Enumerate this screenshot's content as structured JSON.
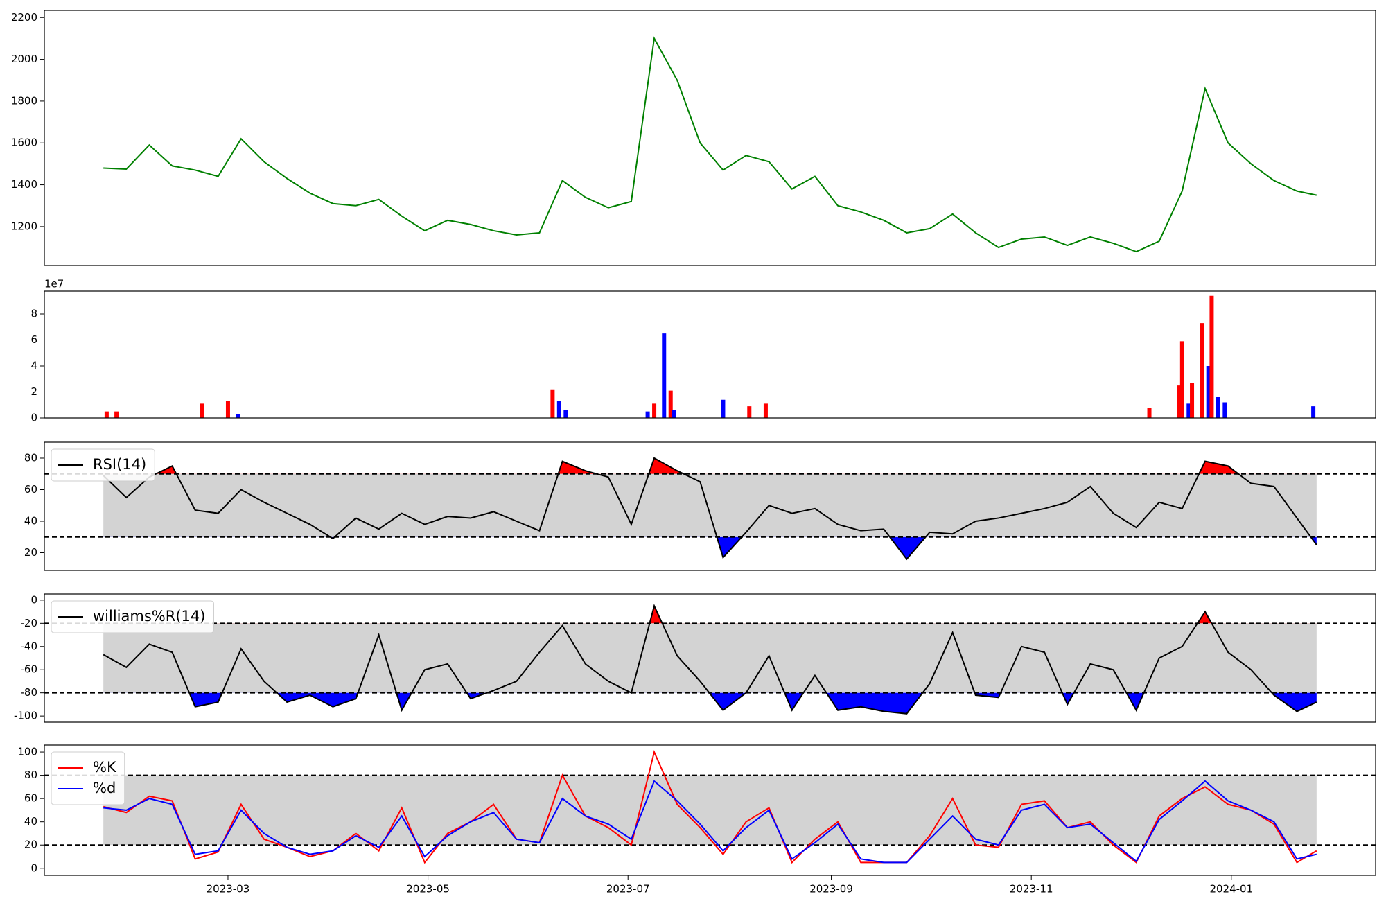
{
  "chart_data": [
    {
      "type": "line",
      "x": [
        19379,
        19386,
        19393,
        19400,
        19407,
        19414,
        19421,
        19428,
        19435,
        19442,
        19449,
        19456,
        19463,
        19470,
        19477,
        19484,
        19491,
        19498,
        19505,
        19512,
        19519,
        19526,
        19533,
        19540,
        19547,
        19554,
        19561,
        19568,
        19575,
        19582,
        19589,
        19596,
        19603,
        19610,
        19617,
        19624,
        19631,
        19638,
        19645,
        19652,
        19659,
        19666,
        19673,
        19680,
        19687,
        19694,
        19701,
        19708,
        19715,
        19722,
        19729,
        19736,
        19743,
        19749
      ],
      "series": [
        {
          "color": "green",
          "values": [
            1480,
            1475,
            1590,
            1490,
            1470,
            1440,
            1620,
            1510,
            1430,
            1360,
            1310,
            1300,
            1330,
            1250,
            1180,
            1230,
            1210,
            1180,
            1160,
            1170,
            1420,
            1340,
            1290,
            1320,
            2100,
            1900,
            1600,
            1470,
            1540,
            1510,
            1380,
            1440,
            1300,
            1270,
            1230,
            1170,
            1190,
            1260,
            1170,
            1100,
            1140,
            1150,
            1110,
            1150,
            1120,
            1080,
            1130,
            1370,
            1860,
            1600,
            1500,
            1420,
            1370,
            1350
          ]
        }
      ],
      "xlim": [
        19361,
        19767
      ],
      "ylim": [
        1014,
        2234
      ],
      "yticks": [
        1200,
        1400,
        1600,
        1800,
        2000,
        2200
      ]
    },
    {
      "type": "bar",
      "x": [
        19380,
        19383,
        19409,
        19417,
        19420,
        19516,
        19518,
        19520,
        19545,
        19547,
        19550,
        19552,
        19553,
        19568,
        19576,
        19581,
        19698,
        19707,
        19708,
        19710,
        19711,
        19714,
        19716,
        19717,
        19719,
        19721,
        19748
      ],
      "values": [
        5000000,
        5000000,
        11000000,
        13000000,
        3000000,
        22000000,
        13000000,
        6000000,
        5000000,
        11000000,
        65000000,
        21000000,
        6000000,
        14000000,
        9000000,
        11000000,
        8000000,
        25000000,
        59000000,
        11000000,
        27000000,
        73000000,
        40000000,
        94000000,
        16000000,
        12000000,
        9000000
      ],
      "colors": [
        "red",
        "red",
        "red",
        "red",
        "blue",
        "red",
        "blue",
        "blue",
        "blue",
        "red",
        "blue",
        "red",
        "blue",
        "blue",
        "red",
        "red",
        "red",
        "red",
        "red",
        "blue",
        "red",
        "red",
        "blue",
        "red",
        "blue",
        "blue",
        "blue"
      ],
      "xlim": [
        19361,
        19767
      ],
      "ylim": [
        0,
        97600000
      ],
      "yticks": [
        0,
        {
          "value": 20000000,
          "label": "2"
        },
        {
          "value": 40000000,
          "label": "4"
        },
        {
          "value": 60000000,
          "label": "6"
        },
        {
          "value": 80000000,
          "label": "8"
        }
      ],
      "offset_label": "1e7"
    },
    {
      "type": "line",
      "x": [
        19379,
        19386,
        19393,
        19400,
        19407,
        19414,
        19421,
        19428,
        19435,
        19442,
        19449,
        19456,
        19463,
        19470,
        19477,
        19484,
        19491,
        19498,
        19505,
        19512,
        19519,
        19526,
        19533,
        19540,
        19547,
        19554,
        19561,
        19568,
        19575,
        19582,
        19589,
        19596,
        19603,
        19610,
        19617,
        19624,
        19631,
        19638,
        19645,
        19652,
        19659,
        19666,
        19673,
        19680,
        19687,
        19694,
        19701,
        19708,
        19715,
        19722,
        19729,
        19736,
        19743,
        19749
      ],
      "series": [
        {
          "name": "RSI(14)",
          "color": "black",
          "values": [
            69,
            55,
            68,
            75,
            47,
            45,
            60,
            52,
            45,
            38,
            29,
            42,
            35,
            45,
            38,
            43,
            42,
            46,
            40,
            34,
            78,
            72,
            68,
            38,
            80,
            72,
            65,
            17,
            33,
            50,
            45,
            48,
            38,
            34,
            35,
            16,
            33,
            32,
            40,
            42,
            45,
            48,
            52,
            62,
            45,
            36,
            52,
            48,
            78,
            75,
            64,
            62,
            42,
            25
          ]
        }
      ],
      "thresholds": [
        70,
        30
      ],
      "band_color": "lightgray",
      "above_color": "red",
      "below_color": "blue",
      "legend": "upper left",
      "xlim": [
        19361,
        19767
      ],
      "ylim": [
        8.8,
        90.1
      ],
      "yticks": [
        20,
        40,
        60,
        80
      ]
    },
    {
      "type": "line",
      "x": [
        19379,
        19386,
        19393,
        19400,
        19407,
        19414,
        19421,
        19428,
        19435,
        19442,
        19449,
        19456,
        19463,
        19470,
        19477,
        19484,
        19491,
        19498,
        19505,
        19512,
        19519,
        19526,
        19533,
        19540,
        19547,
        19554,
        19561,
        19568,
        19575,
        19582,
        19589,
        19596,
        19603,
        19610,
        19617,
        19624,
        19631,
        19638,
        19645,
        19652,
        19659,
        19666,
        19673,
        19680,
        19687,
        19694,
        19701,
        19708,
        19715,
        19722,
        19729,
        19736,
        19743,
        19749
      ],
      "series": [
        {
          "name": "williams%R(14)",
          "color": "black",
          "values": [
            -47,
            -58,
            -38,
            -45,
            -92,
            -88,
            -42,
            -70,
            -88,
            -82,
            -92,
            -85,
            -30,
            -95,
            -60,
            -55,
            -85,
            -78,
            -70,
            -45,
            -22,
            -55,
            -70,
            -80,
            -5,
            -48,
            -70,
            -95,
            -80,
            -48,
            -95,
            -65,
            -95,
            -92,
            -96,
            -98,
            -72,
            -28,
            -82,
            -84,
            -40,
            -45,
            -90,
            -55,
            -60,
            -95,
            -50,
            -40,
            -10,
            -45,
            -60,
            -82,
            -96,
            -88
          ]
        }
      ],
      "thresholds": [
        -20,
        -80
      ],
      "band_color": "lightgray",
      "above_color": "red",
      "below_color": "blue",
      "legend": "upper left",
      "xlim": [
        19361,
        19767
      ],
      "ylim": [
        -105.3,
        5.3
      ],
      "yticks": [
        -100,
        -80,
        -60,
        -40,
        -20,
        0
      ]
    },
    {
      "type": "line",
      "x": [
        19379,
        19386,
        19393,
        19400,
        19407,
        19414,
        19421,
        19428,
        19435,
        19442,
        19449,
        19456,
        19463,
        19470,
        19477,
        19484,
        19491,
        19498,
        19505,
        19512,
        19519,
        19526,
        19533,
        19540,
        19547,
        19554,
        19561,
        19568,
        19575,
        19582,
        19589,
        19596,
        19603,
        19610,
        19617,
        19624,
        19631,
        19638,
        19645,
        19652,
        19659,
        19666,
        19673,
        19680,
        19687,
        19694,
        19701,
        19708,
        19715,
        19722,
        19729,
        19736,
        19743,
        19749
      ],
      "series": [
        {
          "name": "%K",
          "color": "red",
          "values": [
            53,
            48,
            62,
            58,
            8,
            14,
            55,
            25,
            18,
            10,
            15,
            30,
            15,
            52,
            5,
            30,
            40,
            55,
            25,
            22,
            80,
            45,
            35,
            20,
            100,
            55,
            35,
            12,
            40,
            52,
            5,
            25,
            40,
            5,
            5,
            5,
            28,
            60,
            20,
            18,
            55,
            58,
            35,
            40,
            20,
            5,
            45,
            60,
            70,
            55,
            50,
            38,
            5,
            15
          ]
        },
        {
          "name": "%d",
          "color": "blue",
          "values": [
            52,
            50,
            60,
            55,
            12,
            15,
            50,
            30,
            18,
            12,
            15,
            28,
            18,
            45,
            10,
            28,
            40,
            48,
            25,
            22,
            60,
            45,
            38,
            25,
            75,
            58,
            38,
            15,
            35,
            50,
            8,
            22,
            38,
            8,
            5,
            5,
            25,
            45,
            25,
            20,
            50,
            55,
            35,
            38,
            22,
            6,
            42,
            58,
            75,
            58,
            50,
            40,
            8,
            12
          ]
        }
      ],
      "thresholds": [
        80,
        20
      ],
      "band_color": "lightgray",
      "legend": "upper left",
      "xlim": [
        19361,
        19767
      ],
      "ylim": [
        -6.1,
        106
      ],
      "yticks": [
        0,
        20,
        40,
        60,
        80,
        100
      ],
      "xticks": [
        {
          "value": 19417,
          "label": "2023-03"
        },
        {
          "value": 19478,
          "label": "2023-05"
        },
        {
          "value": 19539,
          "label": "2023-07"
        },
        {
          "value": 19601,
          "label": "2023-09"
        },
        {
          "value": 19662,
          "label": "2023-11"
        },
        {
          "value": 19723,
          "label": "2024-01"
        }
      ]
    }
  ]
}
